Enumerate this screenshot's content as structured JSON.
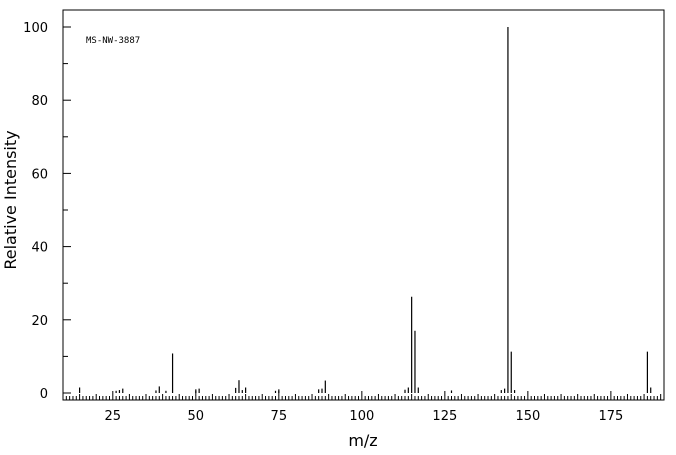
{
  "chart_data": {
    "type": "bar",
    "subtype": "mass-spectrum-stick",
    "annotation": "MS-NW-3887",
    "xlabel": "m/z",
    "ylabel": "Relative Intensity",
    "xlim": [
      10,
      191
    ],
    "ylim": [
      0,
      100
    ],
    "xticks": [
      25,
      50,
      75,
      100,
      125,
      150,
      175
    ],
    "yticks": [
      0,
      20,
      40,
      60,
      80,
      100
    ],
    "grid": false,
    "peaks": [
      {
        "mz": 15,
        "intensity": 1.5
      },
      {
        "mz": 26,
        "intensity": 0.6
      },
      {
        "mz": 27,
        "intensity": 0.8
      },
      {
        "mz": 28,
        "intensity": 1.2
      },
      {
        "mz": 38,
        "intensity": 0.7
      },
      {
        "mz": 39,
        "intensity": 1.8
      },
      {
        "mz": 41,
        "intensity": 0.6
      },
      {
        "mz": 43,
        "intensity": 10.8
      },
      {
        "mz": 50,
        "intensity": 1.0
      },
      {
        "mz": 51,
        "intensity": 1.2
      },
      {
        "mz": 62,
        "intensity": 1.4
      },
      {
        "mz": 63,
        "intensity": 3.5
      },
      {
        "mz": 64,
        "intensity": 0.8
      },
      {
        "mz": 65,
        "intensity": 1.5
      },
      {
        "mz": 74,
        "intensity": 0.6
      },
      {
        "mz": 75,
        "intensity": 1.0
      },
      {
        "mz": 87,
        "intensity": 1.0
      },
      {
        "mz": 88,
        "intensity": 1.2
      },
      {
        "mz": 89,
        "intensity": 3.4
      },
      {
        "mz": 113,
        "intensity": 0.9
      },
      {
        "mz": 114,
        "intensity": 1.5
      },
      {
        "mz": 115,
        "intensity": 26.3
      },
      {
        "mz": 116,
        "intensity": 17.0
      },
      {
        "mz": 117,
        "intensity": 1.5
      },
      {
        "mz": 127,
        "intensity": 0.7
      },
      {
        "mz": 142,
        "intensity": 0.8
      },
      {
        "mz": 143,
        "intensity": 1.2
      },
      {
        "mz": 144,
        "intensity": 100
      },
      {
        "mz": 145,
        "intensity": 11.3
      },
      {
        "mz": 146,
        "intensity": 0.8
      },
      {
        "mz": 186,
        "intensity": 11.3
      },
      {
        "mz": 187,
        "intensity": 1.5
      }
    ]
  }
}
